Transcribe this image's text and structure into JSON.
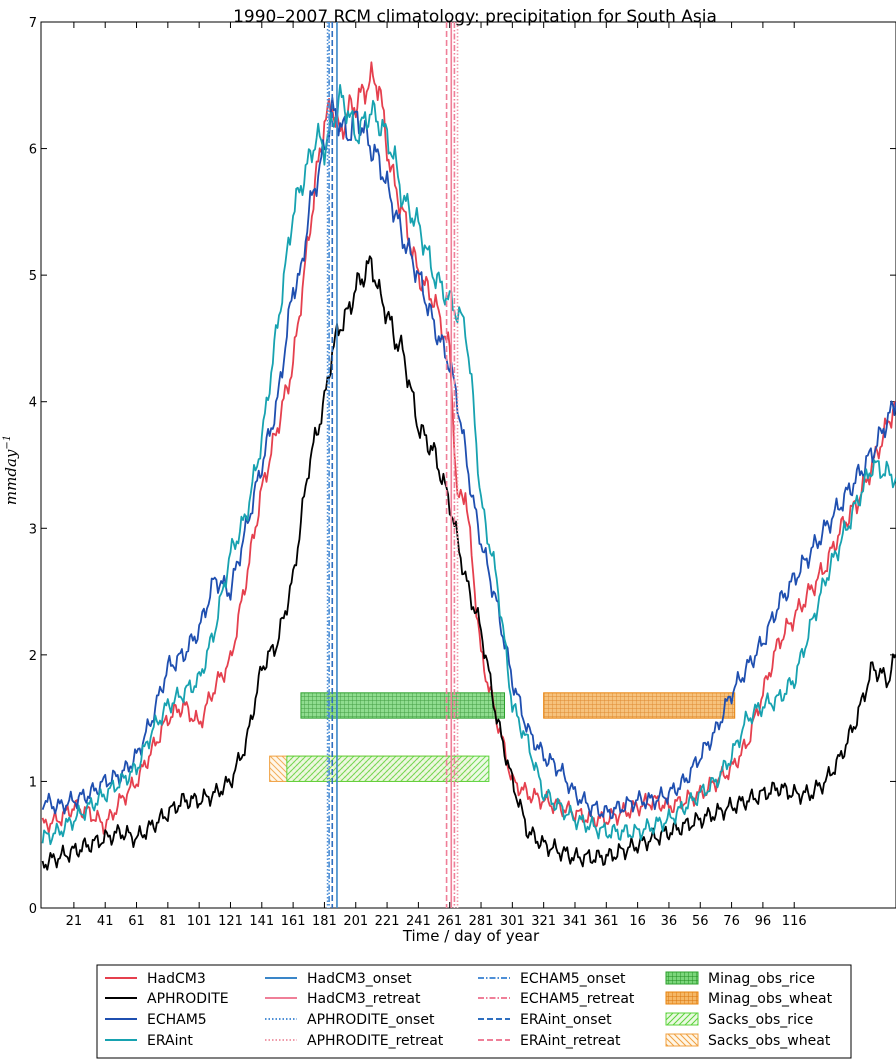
{
  "chart_data": {
    "type": "line",
    "title": "1990–2007 RCM climatology: precipitation for South Asia",
    "xlabel": "Time / day of year",
    "ylabel": "mmday",
    "ylabel_sup": "−1",
    "ylim": [
      0,
      7
    ],
    "yticks": [
      "0",
      "1",
      "2",
      "3",
      "4",
      "5",
      "6",
      "7"
    ],
    "xtick_labels": [
      "21",
      "41",
      "61",
      "81",
      "101",
      "121",
      "141",
      "161",
      "181",
      "201",
      "221",
      "241",
      "261",
      "281",
      "301",
      "321",
      "341",
      "361",
      "16",
      "36",
      "56",
      "76",
      "96",
      "116"
    ],
    "grid": false,
    "legend_location": "bottom-outside",
    "x_note": "x in days of an 18-month window starting at day 1; labels after 361 wrap to next year",
    "series": [
      {
        "name": "HadCM3",
        "color": "#e5404e",
        "style": "solid",
        "x": [
          1,
          11,
          21,
          31,
          41,
          51,
          61,
          71,
          81,
          91,
          101,
          111,
          121,
          131,
          141,
          151,
          161,
          171,
          176,
          181,
          186,
          191,
          196,
          201,
          206,
          211,
          216,
          221,
          226,
          231,
          241,
          251,
          261,
          266,
          271,
          281,
          291,
          301,
          311,
          321,
          331,
          341,
          351,
          361,
          371,
          381,
          391,
          401,
          411,
          421,
          431,
          441,
          451,
          461,
          471,
          481,
          491,
          501,
          511,
          521,
          531,
          546
        ],
        "y": [
          0.65,
          0.7,
          0.8,
          0.75,
          0.65,
          0.85,
          1.0,
          1.25,
          1.5,
          1.6,
          1.45,
          1.75,
          1.95,
          2.6,
          3.3,
          3.8,
          4.3,
          5.3,
          5.8,
          6.2,
          6.35,
          6.1,
          6.3,
          6.35,
          6.45,
          6.55,
          6.5,
          6.0,
          5.7,
          5.5,
          5.0,
          4.8,
          4.4,
          3.2,
          3.3,
          2.0,
          1.5,
          1.0,
          0.9,
          0.85,
          0.8,
          0.75,
          0.7,
          0.7,
          0.75,
          0.8,
          0.85,
          0.8,
          0.85,
          0.9,
          1.0,
          1.1,
          1.3,
          1.7,
          2.1,
          2.3,
          2.5,
          2.7,
          3.0,
          3.2,
          3.5,
          4.0
        ]
      },
      {
        "name": "APHRODITE",
        "color": "#000000",
        "style": "solid",
        "x": [
          1,
          11,
          21,
          31,
          41,
          51,
          61,
          71,
          81,
          91,
          101,
          111,
          121,
          131,
          141,
          151,
          161,
          171,
          181,
          186,
          191,
          196,
          201,
          206,
          211,
          216,
          221,
          226,
          231,
          241,
          251,
          261,
          266,
          271,
          281,
          291,
          301,
          311,
          321,
          331,
          341,
          351,
          361,
          371,
          381,
          391,
          401,
          411,
          421,
          431,
          441,
          451,
          461,
          471,
          481,
          491,
          501,
          511,
          521,
          531,
          541,
          546
        ],
        "y": [
          0.35,
          0.4,
          0.45,
          0.5,
          0.55,
          0.6,
          0.55,
          0.65,
          0.75,
          0.85,
          0.85,
          0.9,
          1.0,
          1.3,
          1.9,
          2.1,
          2.6,
          3.5,
          4.0,
          4.4,
          4.6,
          4.7,
          4.9,
          5.0,
          5.1,
          4.85,
          4.7,
          4.5,
          4.4,
          3.8,
          3.6,
          3.2,
          2.9,
          2.6,
          2.2,
          1.5,
          1.0,
          0.6,
          0.5,
          0.45,
          0.4,
          0.4,
          0.4,
          0.45,
          0.5,
          0.55,
          0.6,
          0.65,
          0.7,
          0.75,
          0.8,
          0.85,
          0.9,
          0.95,
          0.9,
          0.9,
          1.0,
          1.2,
          1.5,
          1.9,
          1.8,
          2.0
        ]
      },
      {
        "name": "ECHAM5",
        "color": "#1f4fb0",
        "style": "solid",
        "x": [
          1,
          11,
          21,
          31,
          41,
          51,
          61,
          71,
          81,
          91,
          101,
          111,
          121,
          131,
          141,
          151,
          161,
          166,
          171,
          181,
          186,
          191,
          196,
          201,
          206,
          211,
          216,
          221,
          231,
          241,
          251,
          261,
          266,
          271,
          276,
          281,
          291,
          301,
          311,
          321,
          331,
          341,
          351,
          361,
          371,
          381,
          391,
          401,
          411,
          421,
          431,
          441,
          451,
          461,
          471,
          481,
          491,
          501,
          511,
          521,
          531,
          546
        ],
        "y": [
          0.85,
          0.8,
          0.85,
          0.9,
          1.0,
          1.05,
          1.2,
          1.5,
          1.9,
          2.0,
          2.2,
          2.6,
          2.5,
          3.0,
          3.5,
          4.0,
          4.9,
          5.0,
          5.5,
          6.0,
          6.3,
          6.2,
          6.1,
          6.25,
          6.15,
          6.0,
          5.9,
          5.7,
          5.3,
          5.0,
          4.6,
          4.3,
          4.0,
          3.6,
          3.2,
          2.9,
          2.4,
          1.8,
          1.4,
          1.2,
          1.1,
          0.9,
          0.8,
          0.75,
          0.8,
          0.85,
          0.85,
          0.9,
          1.0,
          1.2,
          1.4,
          1.7,
          1.9,
          2.1,
          2.4,
          2.6,
          2.8,
          3.0,
          3.2,
          3.4,
          3.6,
          4.0
        ]
      },
      {
        "name": "ERAint",
        "color": "#17a2b0",
        "style": "solid",
        "x": [
          1,
          11,
          21,
          31,
          41,
          51,
          61,
          71,
          81,
          91,
          101,
          111,
          121,
          131,
          141,
          151,
          161,
          171,
          176,
          181,
          186,
          191,
          196,
          201,
          206,
          211,
          216,
          221,
          226,
          231,
          241,
          251,
          261,
          266,
          271,
          276,
          281,
          291,
          301,
          311,
          321,
          331,
          341,
          351,
          361,
          371,
          381,
          391,
          401,
          411,
          421,
          431,
          441,
          451,
          461,
          471,
          481,
          491,
          501,
          511,
          521,
          531,
          546
        ],
        "y": [
          0.55,
          0.6,
          0.7,
          0.8,
          0.9,
          1.0,
          1.1,
          1.4,
          1.6,
          1.7,
          1.8,
          2.2,
          2.8,
          3.1,
          3.7,
          4.6,
          5.5,
          5.9,
          6.1,
          6.0,
          6.2,
          6.4,
          6.3,
          6.1,
          6.2,
          6.3,
          6.2,
          6.1,
          5.9,
          5.6,
          5.4,
          5.0,
          4.8,
          4.7,
          4.6,
          4.0,
          3.2,
          2.6,
          1.6,
          1.3,
          0.9,
          0.8,
          0.7,
          0.65,
          0.6,
          0.6,
          0.6,
          0.65,
          0.7,
          0.8,
          0.9,
          1.0,
          1.2,
          1.5,
          1.6,
          1.65,
          1.8,
          2.2,
          2.6,
          2.9,
          3.2,
          3.5,
          3.4
        ]
      }
    ],
    "vlines": [
      {
        "name": "HadCM3_onset",
        "x": 189,
        "color": "#3a86c8",
        "style": "solid"
      },
      {
        "name": "HadCM3_retreat",
        "x": 262,
        "color": "#ef7f98",
        "style": "solid"
      },
      {
        "name": "APHRODITE_onset",
        "x": 183,
        "color": "#4d8fd6",
        "style": "dotted"
      },
      {
        "name": "APHRODITE_retreat",
        "x": 266,
        "color": "#ef9aa8",
        "style": "dotted"
      },
      {
        "name": "ECHAM5_onset",
        "x": 184,
        "color": "#4d8fd6",
        "style": "dashdot"
      },
      {
        "name": "ECHAM5_retreat",
        "x": 264,
        "color": "#ef7f98",
        "style": "dashdot"
      },
      {
        "name": "ERAint_onset",
        "x": 186,
        "color": "#2f6fc0",
        "style": "dashed"
      },
      {
        "name": "ERAint_retreat",
        "x": 259,
        "color": "#ef7f98",
        "style": "dashed"
      }
    ],
    "bars": [
      {
        "name": "Minag_obs_rice",
        "x0": 166,
        "x1": 296,
        "y0": 1.5,
        "y1": 1.7,
        "color": "#2ca02c",
        "hatch": "grid",
        "fill": "#6fcf6f"
      },
      {
        "name": "Minag_obs_wheat",
        "x0": 321,
        "x1": 443,
        "y0": 1.5,
        "y1": 1.7,
        "color": "#e8830e",
        "hatch": "grid",
        "fill": "#f4b366"
      },
      {
        "name": "Sacks_obs_rice",
        "x0": 157,
        "x1": 286,
        "y0": 1.0,
        "y1": 1.2,
        "color": "#5bd33b",
        "hatch": "diag",
        "fill": "#d6f5c8"
      },
      {
        "name": "Sacks_obs_wheat",
        "x0": 146,
        "x1": 274,
        "y0": 1.0,
        "y1": 1.2,
        "color": "#f0a040",
        "hatch": "back",
        "fill": "#fff7e0"
      }
    ]
  }
}
